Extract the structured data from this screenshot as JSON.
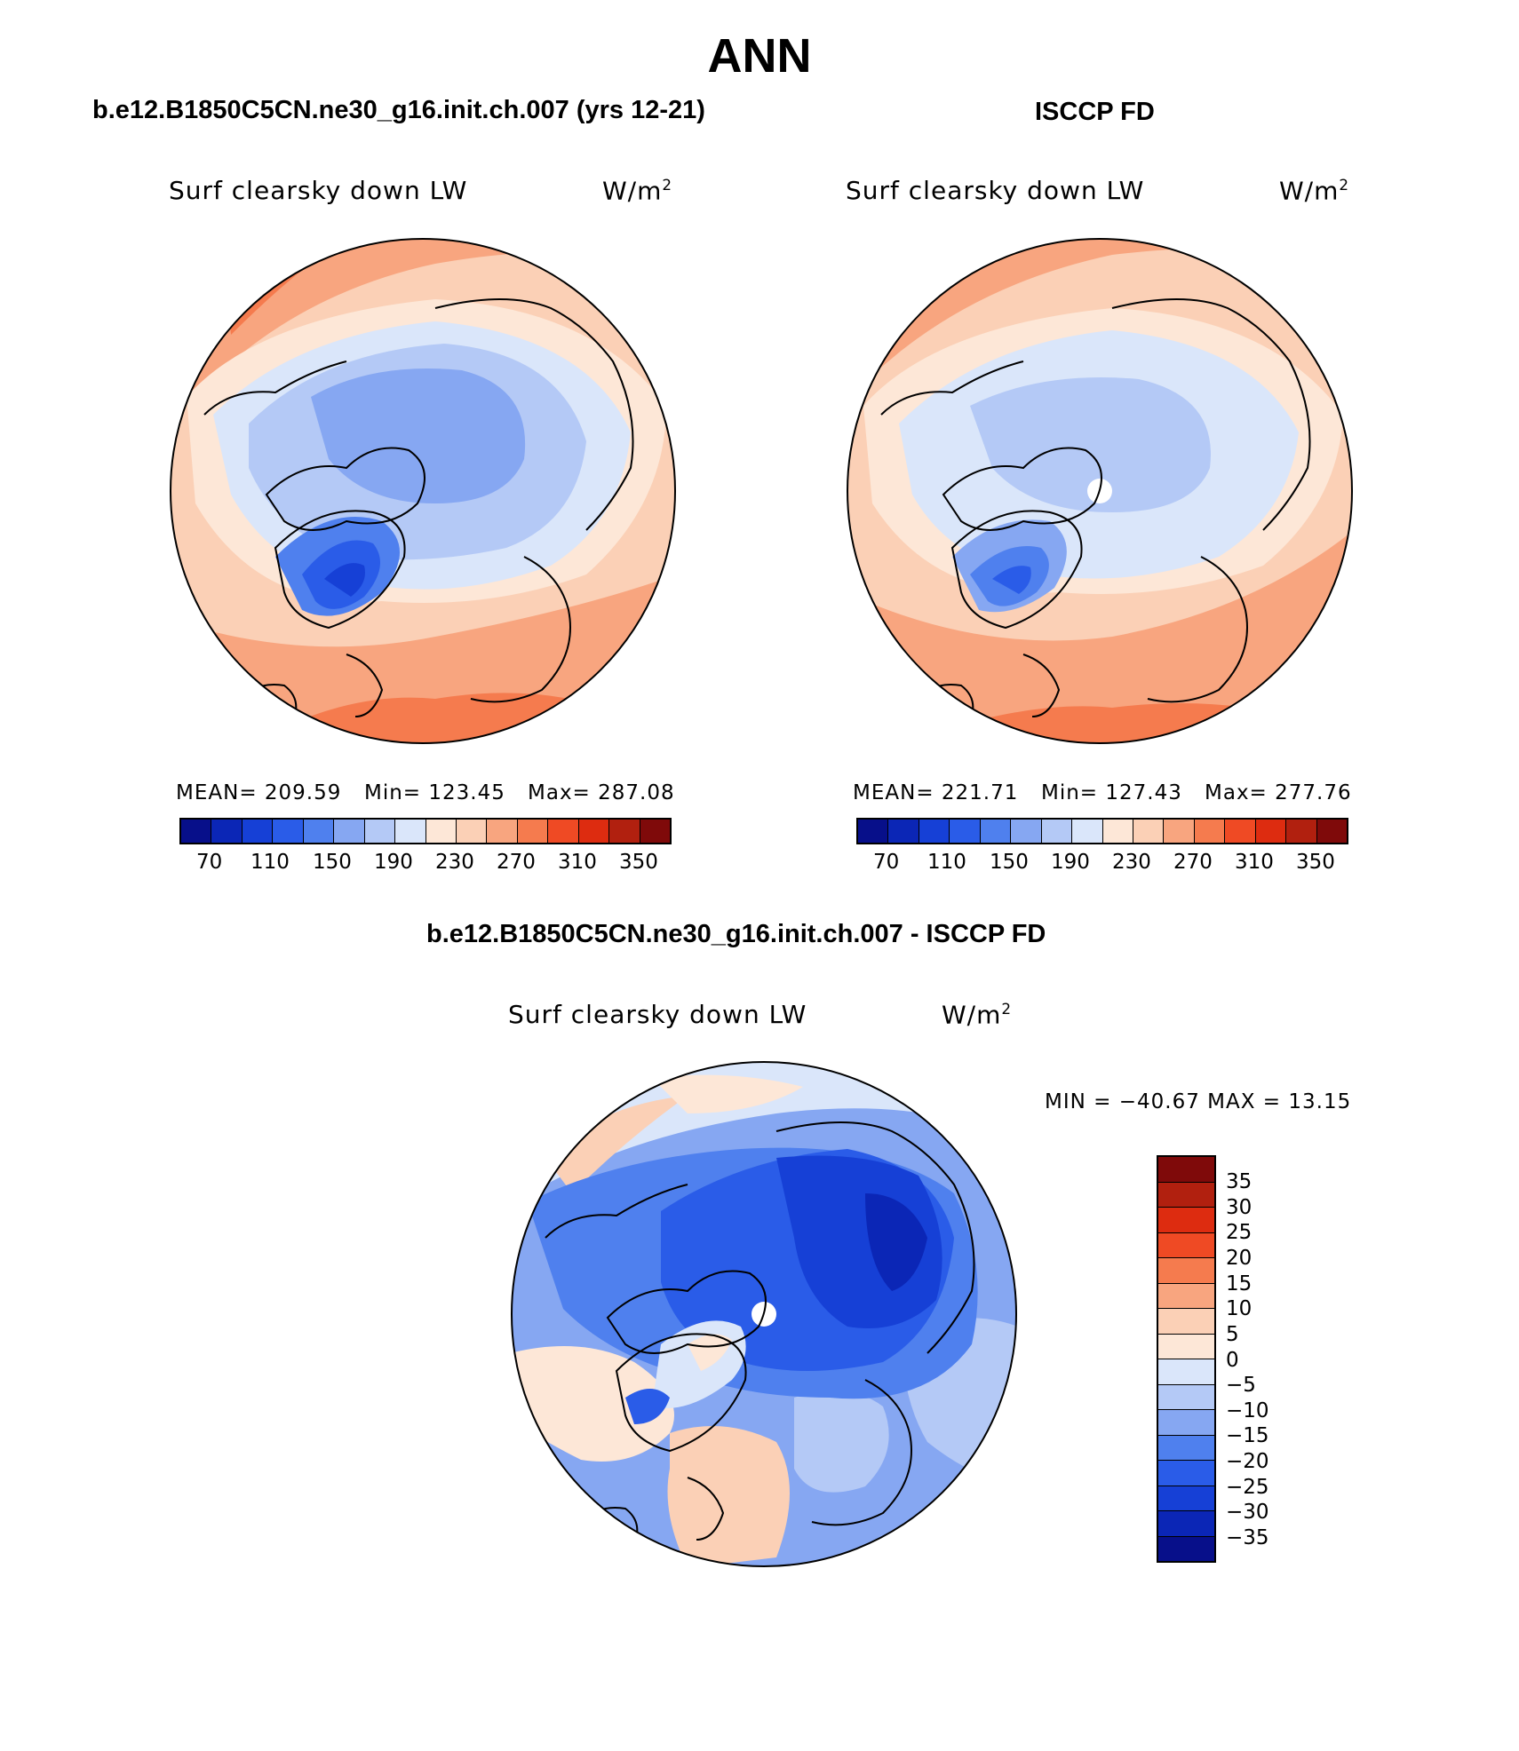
{
  "title": "ANN",
  "colors": {
    "scale_ramp": [
      "#070f8a",
      "#0b26b6",
      "#1640d6",
      "#2a5ce8",
      "#4f80ee",
      "#86a7f2",
      "#b4c9f6",
      "#dae6fa",
      "#fde7d7",
      "#fbd0b6",
      "#f8a57f",
      "#f57b4e",
      "#ef4a24",
      "#dd2c10",
      "#b1200f",
      "#7f0a0a"
    ]
  },
  "panels": [
    {
      "id": "model",
      "heading": "b.e12.B1850C5CN.ne30_g16.init.ch.007 (yrs 12-21)",
      "variable": "Surf clearsky down LW",
      "units_main": "W/m",
      "units_sup": "2",
      "stats": {
        "mean": "MEAN= 209.59",
        "min": "Min= 123.45",
        "max": "Max= 287.08"
      },
      "colorbar_labels": [
        "70",
        "110",
        "150",
        "190",
        "230",
        "270",
        "310",
        "350"
      ],
      "has_pole_hole": false
    },
    {
      "id": "obs",
      "heading": "ISCCP FD",
      "variable": "Surf clearsky down LW",
      "units_main": "W/m",
      "units_sup": "2",
      "stats": {
        "mean": "MEAN= 221.71",
        "min": "Min= 127.43",
        "max": "Max= 277.76"
      },
      "colorbar_labels": [
        "70",
        "110",
        "150",
        "190",
        "230",
        "270",
        "310",
        "350"
      ],
      "has_pole_hole": true
    },
    {
      "id": "diff",
      "heading": "b.e12.B1850C5CN.ne30_g16.init.ch.007 - ISCCP FD",
      "variable": "Surf clearsky down LW",
      "units_main": "W/m",
      "units_sup": "2",
      "stats": {
        "minmax": "MIN = −40.67 MAX =  13.15"
      },
      "colorbar_labels": [
        "35",
        "30",
        "25",
        "20",
        "15",
        "10",
        "5",
        "0",
        "−5",
        "−10",
        "−15",
        "−20",
        "−25",
        "−30",
        "−35"
      ],
      "has_pole_hole": true
    }
  ]
}
